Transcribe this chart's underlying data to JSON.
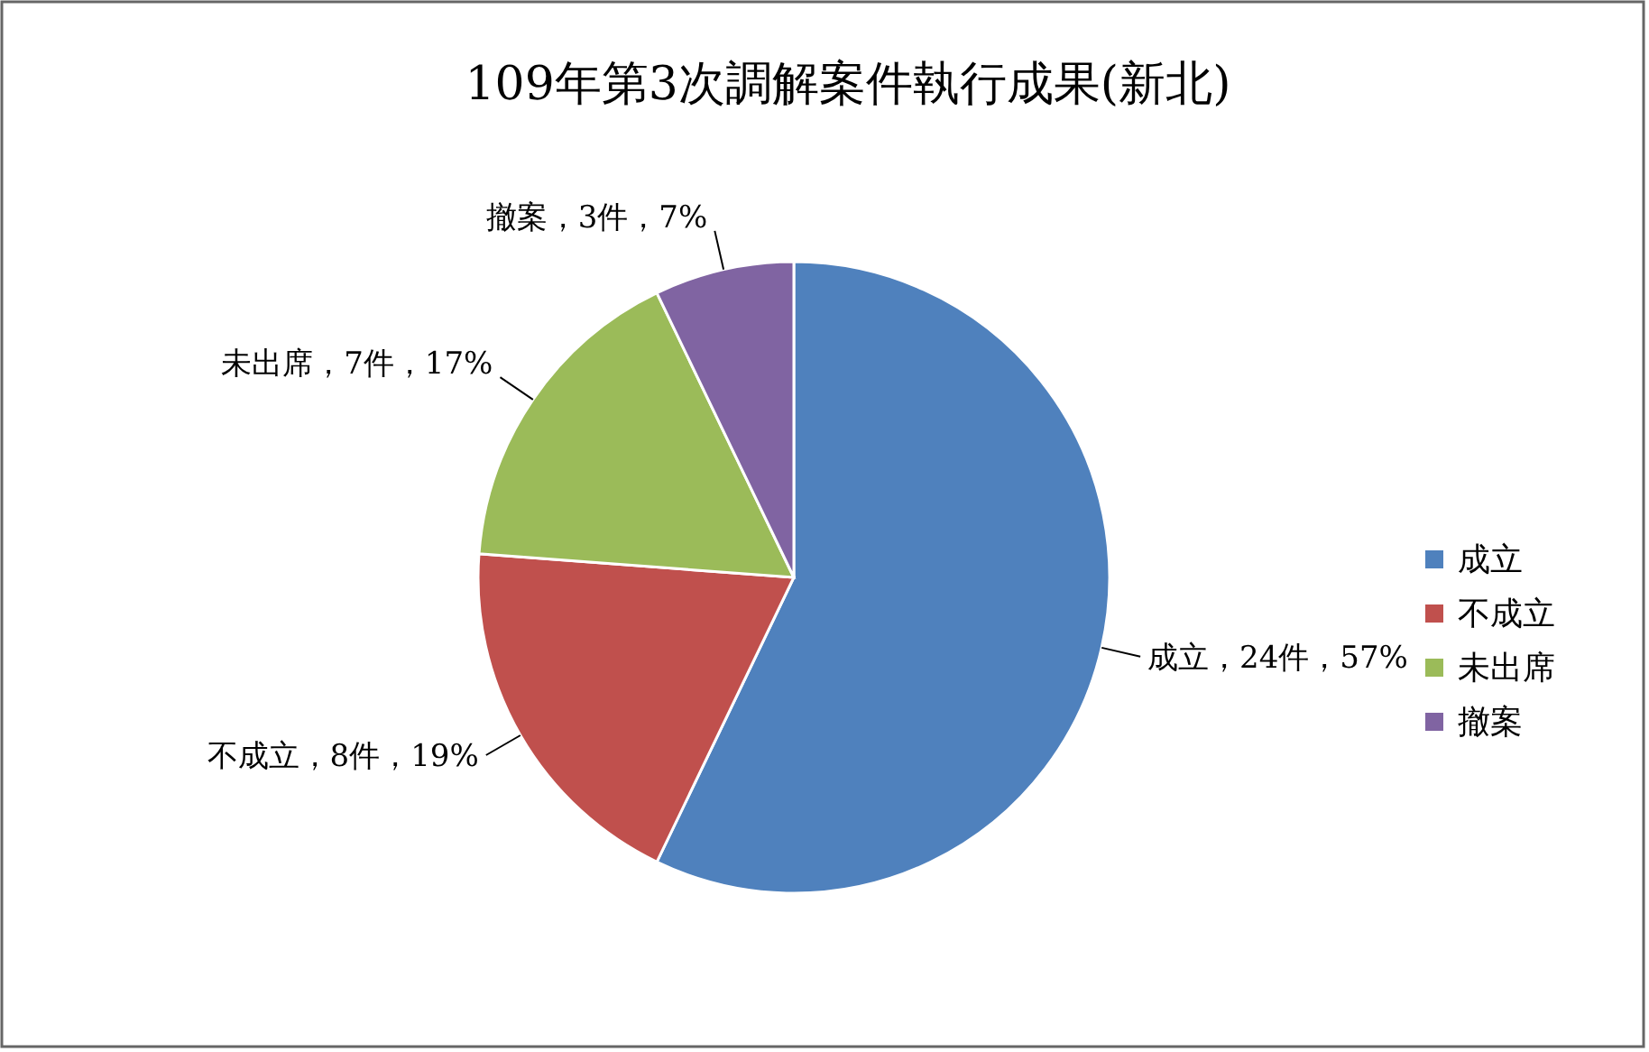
{
  "chart_data": {
    "type": "pie",
    "title": "109年第3次調解案件執行成果(新北)",
    "categories": [
      "成立",
      "不成立",
      "未出席",
      "撤案"
    ],
    "values": [
      24,
      8,
      7,
      3
    ],
    "colors": [
      "#4f81bd",
      "#c0504d",
      "#9bbb59",
      "#8064a2"
    ],
    "value_labels": [
      "成立，24件，57%",
      "不成立，8件，19%",
      "未出席，7件，17%",
      "撤案，3件，7%"
    ],
    "legend": "right"
  }
}
